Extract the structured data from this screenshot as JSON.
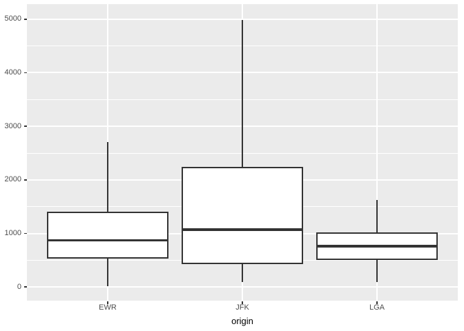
{
  "chart_data": {
    "type": "boxplot",
    "title": "",
    "xlabel": "origin",
    "ylabel": "",
    "categories": [
      "EWR",
      "JFK",
      "LGA"
    ],
    "y_ticks": [
      0,
      1000,
      2000,
      3000,
      4000,
      5000
    ],
    "ylim": [
      -255,
      5280
    ],
    "grid": "horizontal major+minor white lines, vertical major white line at each category",
    "legend_position": "none",
    "series": [
      {
        "name": "EWR",
        "whisker_low": 17,
        "q1": 529,
        "median": 872,
        "q3": 1400,
        "whisker_high": 2708,
        "outliers": []
      },
      {
        "name": "JFK",
        "whisker_low": 94,
        "q1": 427,
        "median": 1069,
        "q3": 2248,
        "whisker_high": 4983,
        "outliers": []
      },
      {
        "name": "LGA",
        "whisker_low": 96,
        "q1": 502,
        "median": 762,
        "q3": 1020,
        "whisker_high": 1620,
        "outliers": []
      }
    ],
    "colors": {
      "page_background": "#FFFFFF",
      "panel_background": "#EBEBEB",
      "gridline": "#FFFFFF",
      "box_stroke": "#333333",
      "box_fill": "#FFFFFF",
      "axis_text": "#4D4D4D",
      "axis_title": "#000000",
      "tick_mark": "#333333"
    }
  }
}
